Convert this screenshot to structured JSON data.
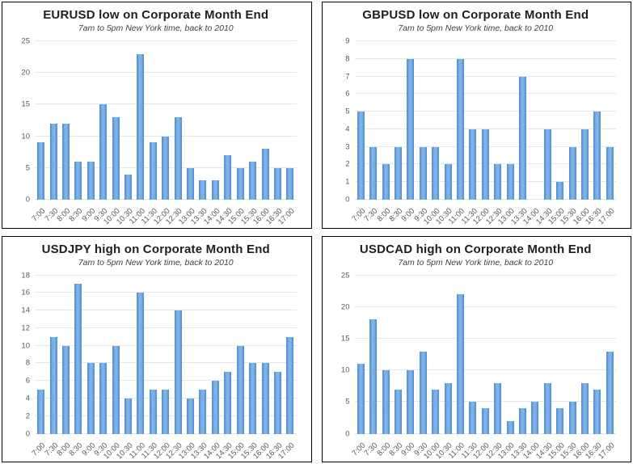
{
  "style": {
    "bar_color": "#5b9bd5",
    "bar_edge": "#4a8bd0",
    "bar_center": "#7fb3e6",
    "gridline_color": "#e7e7e7",
    "tick_color": "#595959",
    "title_color": "#1f1f1f",
    "subtitle_color": "#404040",
    "panel_border": "#000000"
  },
  "chart_data": [
    {
      "type": "bar",
      "title": "EURUSD low on Corporate Month End",
      "subtitle": "7am to 5pm New York time, back to 2010",
      "categories": [
        "7:00",
        "7:30",
        "8:00",
        "8:30",
        "9:00",
        "9:30",
        "10:00",
        "10:30",
        "11:00",
        "11:30",
        "12:00",
        "12:30",
        "13:00",
        "13:30",
        "14:00",
        "14:30",
        "15:00",
        "15:30",
        "16:00",
        "16:30",
        "17:00"
      ],
      "values": [
        9,
        12,
        12,
        6,
        6,
        15,
        13,
        4,
        23,
        9,
        10,
        13,
        5,
        3,
        3,
        7,
        5,
        6,
        8,
        5,
        5
      ],
      "xlabel": "",
      "ylabel": "",
      "ylim": [
        0,
        25
      ],
      "ytick_step": 5,
      "grid": true,
      "legend": null
    },
    {
      "type": "bar",
      "title": "GBPUSD low on Corporate Month End",
      "subtitle": "7am to 5pm New York time, back to 2010",
      "categories": [
        "7:00",
        "7:30",
        "8:00",
        "8:30",
        "9:00",
        "9:30",
        "10:00",
        "10:30",
        "11:00",
        "11:30",
        "12:00",
        "12:30",
        "13:00",
        "13:30",
        "14:00",
        "14:30",
        "15:00",
        "15:30",
        "16:00",
        "16:30",
        "17:00"
      ],
      "values": [
        5,
        3,
        2,
        3,
        8,
        3,
        3,
        2,
        8,
        4,
        4,
        2,
        2,
        7,
        0,
        4,
        1,
        3,
        4,
        5,
        3
      ],
      "xlabel": "",
      "ylabel": "",
      "ylim": [
        0,
        9
      ],
      "ytick_step": 1,
      "grid": true,
      "legend": null
    },
    {
      "type": "bar",
      "title": "USDJPY high on Corporate Month End",
      "subtitle": "7am to 5pm New York time, back to 2010",
      "categories": [
        "7:00",
        "7:30",
        "8:00",
        "8:30",
        "9:00",
        "9:30",
        "10:00",
        "10:30",
        "11:00",
        "11:30",
        "12:00",
        "12:30",
        "13:00",
        "13:30",
        "14:00",
        "14:30",
        "15:00",
        "15:30",
        "16:00",
        "16:30",
        "17:00"
      ],
      "values": [
        5,
        11,
        10,
        17,
        8,
        8,
        10,
        4,
        16,
        5,
        5,
        14,
        4,
        5,
        6,
        7,
        10,
        8,
        8,
        7,
        11
      ],
      "xlabel": "",
      "ylabel": "",
      "ylim": [
        0,
        18
      ],
      "ytick_step": 2,
      "grid": true,
      "legend": null
    },
    {
      "type": "bar",
      "title": "USDCAD high on Corporate Month End",
      "subtitle": "7am to 5pm New York time, back to 2010",
      "categories": [
        "7:00",
        "7:30",
        "8:00",
        "8:30",
        "9:00",
        "9:30",
        "10:00",
        "10:30",
        "11:00",
        "11:30",
        "12:00",
        "12:30",
        "13:00",
        "13:30",
        "14:00",
        "14:30",
        "15:00",
        "15:30",
        "16:00",
        "16:30",
        "17:00"
      ],
      "values": [
        11,
        18,
        10,
        7,
        10,
        13,
        7,
        8,
        22,
        5,
        4,
        8,
        2,
        4,
        5,
        8,
        4,
        5,
        8,
        7,
        13
      ],
      "xlabel": "",
      "ylabel": "",
      "ylim": [
        0,
        25
      ],
      "ytick_step": 5,
      "grid": true,
      "legend": null
    }
  ]
}
